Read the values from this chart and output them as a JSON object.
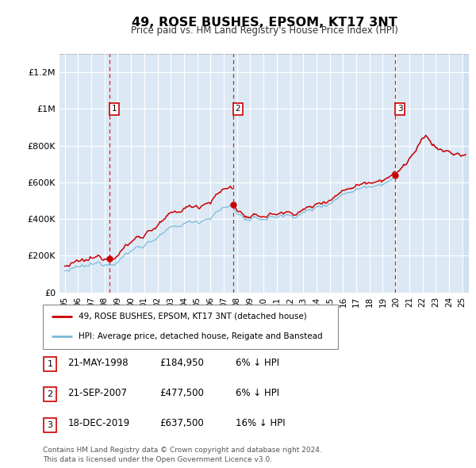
{
  "title": "49, ROSE BUSHES, EPSOM, KT17 3NT",
  "subtitle": "Price paid vs. HM Land Registry's House Price Index (HPI)",
  "background_color": "#ffffff",
  "plot_bg_color": "#dce9f5",
  "grid_color": "#ffffff",
  "sale_dates": [
    1998.38,
    2007.72,
    2019.96
  ],
  "sale_prices": [
    184950,
    477500,
    637500
  ],
  "sale_labels": [
    "1",
    "2",
    "3"
  ],
  "legend_line1": "49, ROSE BUSHES, EPSOM, KT17 3NT (detached house)",
  "legend_line2": "HPI: Average price, detached house, Reigate and Banstead",
  "table_rows": [
    [
      "1",
      "21-MAY-1998",
      "£184,950",
      "6% ↓ HPI"
    ],
    [
      "2",
      "21-SEP-2007",
      "£477,500",
      "6% ↓ HPI"
    ],
    [
      "3",
      "18-DEC-2019",
      "£637,500",
      "16% ↓ HPI"
    ]
  ],
  "footer": "Contains HM Land Registry data © Crown copyright and database right 2024.\nThis data is licensed under the Open Government Licence v3.0.",
  "hpi_color": "#7ab8d9",
  "price_color": "#cc0000",
  "dashed_color": "#cc0000",
  "ylim": [
    0,
    1300000
  ],
  "xlim_start": 1994.6,
  "xlim_end": 2025.5,
  "yticks": [
    0,
    200000,
    400000,
    600000,
    800000,
    1000000,
    1200000
  ],
  "ytick_labels": [
    "£0",
    "£200K",
    "£400K",
    "£600K",
    "£800K",
    "£1M",
    "£1.2M"
  ],
  "hpi_base_points_x": [
    1995.0,
    1996.0,
    1997.0,
    1998.0,
    1999.0,
    2000.0,
    2001.0,
    2002.0,
    2003.0,
    2004.0,
    2005.0,
    2006.0,
    2007.0,
    2007.5,
    2008.0,
    2008.5,
    2009.0,
    2009.5,
    2010.0,
    2011.0,
    2012.0,
    2013.0,
    2014.0,
    2014.5,
    2015.0,
    2016.0,
    2016.5,
    2017.0,
    2017.5,
    2018.0,
    2018.5,
    2019.0,
    2019.5,
    2020.0,
    2020.3,
    2020.7,
    2021.0,
    2021.5,
    2022.0,
    2022.3,
    2022.7,
    2023.0,
    2023.5,
    2024.0,
    2024.5,
    2025.0
  ],
  "hpi_base_points_y": [
    118000,
    125000,
    138000,
    160000,
    190000,
    230000,
    268000,
    305000,
    335000,
    370000,
    390000,
    420000,
    460000,
    470000,
    440000,
    410000,
    385000,
    390000,
    400000,
    415000,
    420000,
    435000,
    460000,
    480000,
    500000,
    540000,
    560000,
    570000,
    580000,
    590000,
    600000,
    610000,
    625000,
    640000,
    670000,
    700000,
    730000,
    770000,
    820000,
    840000,
    810000,
    790000,
    770000,
    760000,
    750000,
    740000
  ]
}
